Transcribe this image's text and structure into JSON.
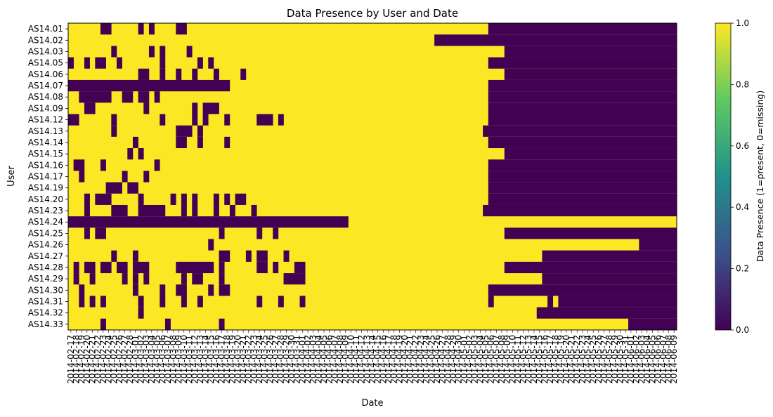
{
  "chart_data": {
    "type": "heatmap",
    "title": "Data Presence by User and Date",
    "xlabel": "Date",
    "ylabel": "User",
    "colorbar": {
      "label": "Data Presence (1=present, 0=missing)",
      "range": [
        0,
        1
      ],
      "ticks": [
        "0.0",
        "0.2",
        "0.4",
        "0.6",
        "0.8",
        "1.0"
      ],
      "colormap": "viridis",
      "colors": [
        "#440154",
        "#3b528b",
        "#21918c",
        "#5ec962",
        "#fde725"
      ]
    },
    "grid": false,
    "legend": "colorbar-right",
    "x_start_date": "2014-02-17",
    "x_end_date": "2014-06-09",
    "x_tick_labels": [
      "2014-02-17",
      "2014-02-18",
      "2014-02-19",
      "2014-02-20",
      "2014-02-21",
      "2014-02-22",
      "2014-02-23",
      "2014-02-24",
      "2014-02-25",
      "2014-02-26",
      "2014-02-27",
      "2014-02-28",
      "2014-03-01",
      "2014-03-02",
      "2014-03-03",
      "2014-03-04",
      "2014-03-05",
      "2014-03-06",
      "2014-03-07",
      "2014-03-08",
      "2014-03-09",
      "2014-03-10",
      "2014-03-11",
      "2014-03-12",
      "2014-03-13",
      "2014-03-14",
      "2014-03-15",
      "2014-03-16",
      "2014-03-17",
      "2014-03-18",
      "2014-03-19",
      "2014-03-20",
      "2014-03-21",
      "2014-03-22",
      "2014-03-23",
      "2014-03-24",
      "2014-03-25",
      "2014-03-26",
      "2014-03-27",
      "2014-03-28",
      "2014-03-29",
      "2014-03-30",
      "2014-03-31",
      "2014-04-01",
      "2014-04-02",
      "2014-04-03",
      "2014-04-04",
      "2014-04-05",
      "2014-04-06",
      "2014-04-07",
      "2014-04-08",
      "2014-04-09",
      "2014-04-10",
      "2014-04-11",
      "2014-04-12",
      "2014-04-13",
      "2014-04-14",
      "2014-04-15",
      "2014-04-16",
      "2014-04-17",
      "2014-04-18",
      "2014-04-19",
      "2014-04-20",
      "2014-04-21",
      "2014-04-22",
      "2014-04-23",
      "2014-04-24",
      "2014-04-25",
      "2014-04-26",
      "2014-04-27",
      "2014-04-28",
      "2014-04-29",
      "2014-04-30",
      "2014-05-01",
      "2014-05-02",
      "2014-05-03",
      "2014-05-04",
      "2014-05-05",
      "2014-05-06",
      "2014-05-07",
      "2014-05-08",
      "2014-05-09",
      "2014-05-10",
      "2014-05-11",
      "2014-05-12",
      "2014-05-13",
      "2014-05-14",
      "2014-05-15",
      "2014-05-16",
      "2014-05-17",
      "2014-05-18",
      "2014-05-19",
      "2014-05-20",
      "2014-05-21",
      "2014-05-22",
      "2014-05-23",
      "2014-05-24",
      "2014-05-25",
      "2014-05-26",
      "2014-05-27",
      "2014-05-28",
      "2014-05-29",
      "2014-05-30",
      "2014-05-31",
      "2014-06-01",
      "2014-06-02",
      "2014-06-03",
      "2014-06-04",
      "2014-06-05",
      "2014-06-06",
      "2014-06-07",
      "2014-06-08",
      "2014-06-09"
    ],
    "rows": [
      {
        "user": "AS14.01",
        "missing_ranges": [
          [
            "2014-02-23",
            "2014-02-24"
          ],
          [
            "2014-03-02",
            "2014-03-02"
          ],
          [
            "2014-03-04",
            "2014-03-04"
          ],
          [
            "2014-03-09",
            "2014-03-10"
          ],
          [
            "2014-05-06",
            "2014-06-09"
          ]
        ]
      },
      {
        "user": "AS14.02",
        "missing_ranges": [
          [
            "2014-04-26",
            "2014-06-09"
          ]
        ]
      },
      {
        "user": "AS14.03",
        "missing_ranges": [
          [
            "2014-02-25",
            "2014-02-25"
          ],
          [
            "2014-03-04",
            "2014-03-04"
          ],
          [
            "2014-03-06",
            "2014-03-06"
          ],
          [
            "2014-03-11",
            "2014-03-11"
          ],
          [
            "2014-05-09",
            "2014-06-09"
          ]
        ]
      },
      {
        "user": "AS14.05",
        "missing_ranges": [
          [
            "2014-02-17",
            "2014-02-17"
          ],
          [
            "2014-02-20",
            "2014-02-20"
          ],
          [
            "2014-02-22",
            "2014-02-23"
          ],
          [
            "2014-02-26",
            "2014-02-26"
          ],
          [
            "2014-03-06",
            "2014-03-06"
          ],
          [
            "2014-03-13",
            "2014-03-13"
          ],
          [
            "2014-03-15",
            "2014-03-15"
          ],
          [
            "2014-05-06",
            "2014-06-09"
          ]
        ]
      },
      {
        "user": "AS14.06",
        "missing_ranges": [
          [
            "2014-03-02",
            "2014-03-03"
          ],
          [
            "2014-03-06",
            "2014-03-06"
          ],
          [
            "2014-03-09",
            "2014-03-09"
          ],
          [
            "2014-03-12",
            "2014-03-12"
          ],
          [
            "2014-03-16",
            "2014-03-16"
          ],
          [
            "2014-03-21",
            "2014-03-21"
          ],
          [
            "2014-05-09",
            "2014-06-09"
          ]
        ]
      },
      {
        "user": "AS14.07",
        "missing_ranges": [
          [
            "2014-02-17",
            "2014-03-18"
          ],
          [
            "2014-05-06",
            "2014-06-09"
          ]
        ]
      },
      {
        "user": "AS14.08",
        "missing_ranges": [
          [
            "2014-02-19",
            "2014-02-24"
          ],
          [
            "2014-02-27",
            "2014-02-28"
          ],
          [
            "2014-03-02",
            "2014-03-03"
          ],
          [
            "2014-03-05",
            "2014-03-05"
          ],
          [
            "2014-05-06",
            "2014-06-09"
          ]
        ]
      },
      {
        "user": "AS14.09",
        "missing_ranges": [
          [
            "2014-02-20",
            "2014-02-21"
          ],
          [
            "2014-03-03",
            "2014-03-03"
          ],
          [
            "2014-03-12",
            "2014-03-12"
          ],
          [
            "2014-03-14",
            "2014-03-16"
          ],
          [
            "2014-05-06",
            "2014-06-09"
          ]
        ]
      },
      {
        "user": "AS14.12",
        "missing_ranges": [
          [
            "2014-02-17",
            "2014-02-18"
          ],
          [
            "2014-02-25",
            "2014-02-25"
          ],
          [
            "2014-03-06",
            "2014-03-06"
          ],
          [
            "2014-03-12",
            "2014-03-12"
          ],
          [
            "2014-03-14",
            "2014-03-14"
          ],
          [
            "2014-03-18",
            "2014-03-18"
          ],
          [
            "2014-03-24",
            "2014-03-26"
          ],
          [
            "2014-03-28",
            "2014-03-28"
          ],
          [
            "2014-05-06",
            "2014-06-09"
          ]
        ]
      },
      {
        "user": "AS14.13",
        "missing_ranges": [
          [
            "2014-02-25",
            "2014-02-25"
          ],
          [
            "2014-03-09",
            "2014-03-11"
          ],
          [
            "2014-03-13",
            "2014-03-13"
          ],
          [
            "2014-05-05",
            "2014-06-09"
          ]
        ]
      },
      {
        "user": "AS14.14",
        "missing_ranges": [
          [
            "2014-03-01",
            "2014-03-01"
          ],
          [
            "2014-03-09",
            "2014-03-10"
          ],
          [
            "2014-03-13",
            "2014-03-13"
          ],
          [
            "2014-03-18",
            "2014-03-18"
          ],
          [
            "2014-05-06",
            "2014-06-09"
          ]
        ]
      },
      {
        "user": "AS14.15",
        "missing_ranges": [
          [
            "2014-02-28",
            "2014-02-28"
          ],
          [
            "2014-03-02",
            "2014-03-02"
          ],
          [
            "2014-05-09",
            "2014-06-09"
          ]
        ]
      },
      {
        "user": "AS14.16",
        "missing_ranges": [
          [
            "2014-02-18",
            "2014-02-19"
          ],
          [
            "2014-02-23",
            "2014-02-23"
          ],
          [
            "2014-03-05",
            "2014-03-05"
          ],
          [
            "2014-05-06",
            "2014-06-09"
          ]
        ]
      },
      {
        "user": "AS14.17",
        "missing_ranges": [
          [
            "2014-02-19",
            "2014-02-19"
          ],
          [
            "2014-02-27",
            "2014-02-27"
          ],
          [
            "2014-03-03",
            "2014-03-03"
          ],
          [
            "2014-05-06",
            "2014-06-09"
          ]
        ]
      },
      {
        "user": "AS14.19",
        "missing_ranges": [
          [
            "2014-02-24",
            "2014-02-26"
          ],
          [
            "2014-02-28",
            "2014-02-29"
          ],
          [
            "2014-05-06",
            "2014-06-09"
          ]
        ]
      },
      {
        "user": "AS14.20",
        "missing_ranges": [
          [
            "2014-02-20",
            "2014-02-20"
          ],
          [
            "2014-02-22",
            "2014-02-24"
          ],
          [
            "2014-03-02",
            "2014-03-02"
          ],
          [
            "2014-03-08",
            "2014-03-08"
          ],
          [
            "2014-03-10",
            "2014-03-10"
          ],
          [
            "2014-03-12",
            "2014-03-12"
          ],
          [
            "2014-03-16",
            "2014-03-16"
          ],
          [
            "2014-03-18",
            "2014-03-18"
          ],
          [
            "2014-03-20",
            "2014-03-21"
          ],
          [
            "2014-05-06",
            "2014-06-09"
          ]
        ]
      },
      {
        "user": "AS14.23",
        "missing_ranges": [
          [
            "2014-02-20",
            "2014-02-20"
          ],
          [
            "2014-02-25",
            "2014-02-27"
          ],
          [
            "2014-03-02",
            "2014-03-06"
          ],
          [
            "2014-03-10",
            "2014-03-10"
          ],
          [
            "2014-03-12",
            "2014-03-12"
          ],
          [
            "2014-03-16",
            "2014-03-16"
          ],
          [
            "2014-03-19",
            "2014-03-19"
          ],
          [
            "2014-03-23",
            "2014-03-23"
          ],
          [
            "2014-05-05",
            "2014-06-09"
          ]
        ]
      },
      {
        "user": "AS14.24",
        "missing_ranges": [
          [
            "2014-02-17",
            "2014-04-09"
          ]
        ]
      },
      {
        "user": "AS14.25",
        "missing_ranges": [
          [
            "2014-02-20",
            "2014-02-20"
          ],
          [
            "2014-02-22",
            "2014-02-23"
          ],
          [
            "2014-03-17",
            "2014-03-17"
          ],
          [
            "2014-03-24",
            "2014-03-24"
          ],
          [
            "2014-03-27",
            "2014-03-27"
          ],
          [
            "2014-05-09",
            "2014-06-09"
          ]
        ]
      },
      {
        "user": "AS14.26",
        "missing_ranges": [
          [
            "2014-03-15",
            "2014-03-15"
          ],
          [
            "2014-06-03",
            "2014-06-09"
          ]
        ]
      },
      {
        "user": "AS14.27",
        "missing_ranges": [
          [
            "2014-02-25",
            "2014-02-25"
          ],
          [
            "2014-03-01",
            "2014-03-01"
          ],
          [
            "2014-03-17",
            "2014-03-18"
          ],
          [
            "2014-03-22",
            "2014-03-22"
          ],
          [
            "2014-03-24",
            "2014-03-25"
          ],
          [
            "2014-03-29",
            "2014-03-29"
          ],
          [
            "2014-05-16",
            "2014-06-09"
          ]
        ]
      },
      {
        "user": "AS14.28",
        "missing_ranges": [
          [
            "2014-02-18",
            "2014-02-18"
          ],
          [
            "2014-02-20",
            "2014-02-21"
          ],
          [
            "2014-02-23",
            "2014-02-24"
          ],
          [
            "2014-02-26",
            "2014-02-27"
          ],
          [
            "2014-03-01",
            "2014-03-03"
          ],
          [
            "2014-03-09",
            "2014-03-15"
          ],
          [
            "2014-03-17",
            "2014-03-17"
          ],
          [
            "2014-03-24",
            "2014-03-25"
          ],
          [
            "2014-03-27",
            "2014-03-27"
          ],
          [
            "2014-03-31",
            "2014-04-01"
          ],
          [
            "2014-05-09",
            "2014-06-09"
          ]
        ]
      },
      {
        "user": "AS14.29",
        "missing_ranges": [
          [
            "2014-02-18",
            "2014-02-18"
          ],
          [
            "2014-02-21",
            "2014-02-21"
          ],
          [
            "2014-02-27",
            "2014-02-27"
          ],
          [
            "2014-03-01",
            "2014-03-01"
          ],
          [
            "2014-03-03",
            "2014-03-03"
          ],
          [
            "2014-03-10",
            "2014-03-10"
          ],
          [
            "2014-03-12",
            "2014-03-13"
          ],
          [
            "2014-03-17",
            "2014-03-17"
          ],
          [
            "2014-03-29",
            "2014-04-01"
          ],
          [
            "2014-05-16",
            "2014-06-09"
          ]
        ]
      },
      {
        "user": "AS14.30",
        "missing_ranges": [
          [
            "2014-02-19",
            "2014-02-19"
          ],
          [
            "2014-03-01",
            "2014-03-01"
          ],
          [
            "2014-03-06",
            "2014-03-06"
          ],
          [
            "2014-03-09",
            "2014-03-10"
          ],
          [
            "2014-03-15",
            "2014-03-15"
          ],
          [
            "2014-03-17",
            "2014-03-18"
          ],
          [
            "2014-05-06",
            "2014-06-09"
          ]
        ]
      },
      {
        "user": "AS14.31",
        "missing_ranges": [
          [
            "2014-02-19",
            "2014-02-19"
          ],
          [
            "2014-02-21",
            "2014-02-21"
          ],
          [
            "2014-02-23",
            "2014-02-23"
          ],
          [
            "2014-03-02",
            "2014-03-02"
          ],
          [
            "2014-03-06",
            "2014-03-06"
          ],
          [
            "2014-03-10",
            "2014-03-10"
          ],
          [
            "2014-03-13",
            "2014-03-13"
          ],
          [
            "2014-03-24",
            "2014-03-24"
          ],
          [
            "2014-03-28",
            "2014-03-28"
          ],
          [
            "2014-04-01",
            "2014-04-01"
          ],
          [
            "2014-05-06",
            "2014-05-06"
          ],
          [
            "2014-05-17",
            "2014-05-17"
          ],
          [
            "2014-05-19",
            "2014-06-09"
          ]
        ]
      },
      {
        "user": "AS14.32",
        "missing_ranges": [
          [
            "2014-03-02",
            "2014-03-02"
          ],
          [
            "2014-05-15",
            "2014-06-09"
          ]
        ]
      },
      {
        "user": "AS14.33",
        "missing_ranges": [
          [
            "2014-02-23",
            "2014-02-23"
          ],
          [
            "2014-03-07",
            "2014-03-07"
          ],
          [
            "2014-03-17",
            "2014-03-17"
          ],
          [
            "2014-06-01",
            "2014-06-09"
          ]
        ]
      }
    ]
  }
}
